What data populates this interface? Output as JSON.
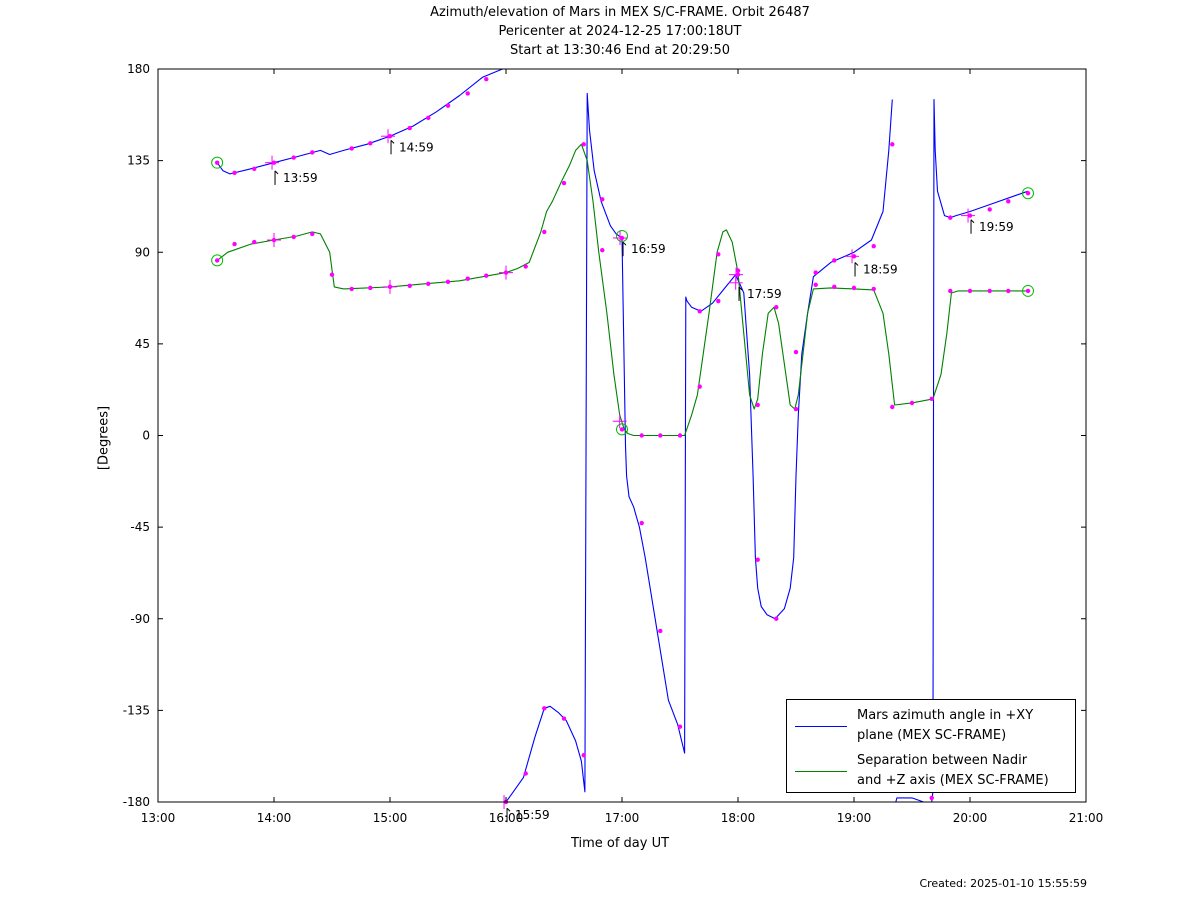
{
  "chart_data": {
    "type": "line",
    "title": "Azimuth/elevation of Mars in MEX S/C-FRAME.  Orbit 26487",
    "subtitle_1": "Pericenter at 2024-12-25 17:00:18UT",
    "subtitle_2": "Start at 13:30:46 End at 20:29:50",
    "xlabel": "Time of day UT",
    "ylabel": "[Degrees]",
    "xlim": [
      13.0,
      21.0
    ],
    "ylim": [
      -180,
      180
    ],
    "x_ticks": [
      {
        "value": 13,
        "label": "13:00"
      },
      {
        "value": 14,
        "label": "14:00"
      },
      {
        "value": 15,
        "label": "15:00"
      },
      {
        "value": 16,
        "label": "16:00"
      },
      {
        "value": 17,
        "label": "17:00"
      },
      {
        "value": 18,
        "label": "18:00"
      },
      {
        "value": 19,
        "label": "19:00"
      },
      {
        "value": 20,
        "label": "20:00"
      },
      {
        "value": 21,
        "label": "21:00"
      }
    ],
    "y_ticks": [
      {
        "value": 180,
        "label": "180"
      },
      {
        "value": 135,
        "label": "135"
      },
      {
        "value": 90,
        "label": "90"
      },
      {
        "value": 45,
        "label": "45"
      },
      {
        "value": 0,
        "label": "0"
      },
      {
        "value": -45,
        "label": "-45"
      },
      {
        "value": -90,
        "label": "-90"
      },
      {
        "value": -135,
        "label": "-135"
      },
      {
        "value": -180,
        "label": "-180"
      }
    ],
    "grid": false,
    "legend_position": "bottom-right",
    "series": [
      {
        "name": "Mars azimuth angle in +XY\nplane (MEX SC-FRAME)",
        "color": "#0000ff",
        "x": [
          13.51,
          13.56,
          13.62,
          13.8,
          14.0,
          14.2,
          14.4,
          14.48,
          14.6,
          14.8,
          15.0,
          15.2,
          15.4,
          15.6,
          15.8,
          15.97,
          15.98,
          15.99,
          16.0,
          16.05,
          16.15,
          16.25,
          16.33,
          16.38,
          16.45,
          16.52,
          16.6,
          16.65,
          16.68,
          16.7,
          16.72,
          16.76,
          16.82,
          16.9,
          16.95,
          17.0,
          17.03,
          17.04,
          17.06,
          17.1,
          17.15,
          17.2,
          17.3,
          17.4,
          17.48,
          17.54,
          17.55,
          17.56,
          17.6,
          17.68,
          17.78,
          17.88,
          17.98,
          18.05,
          18.1,
          18.13,
          18.15,
          18.17,
          18.2,
          18.25,
          18.32,
          18.4,
          18.45,
          18.48,
          18.5,
          18.52,
          18.55,
          18.6,
          18.65,
          18.8,
          19.0,
          19.15,
          19.25,
          19.3,
          19.33,
          19.35,
          19.36,
          19.37,
          19.5,
          19.6,
          19.67,
          19.68,
          19.69,
          19.7,
          19.72,
          19.78,
          19.83,
          19.88,
          20.0,
          20.2,
          20.4,
          20.5
        ],
        "y": [
          134,
          130,
          128.5,
          131,
          134,
          137,
          140,
          138,
          140,
          143,
          147,
          152,
          159,
          167,
          176,
          180,
          null,
          -180,
          -180,
          -176,
          -168,
          -148,
          -134,
          -133,
          -136,
          -140,
          -150,
          -160,
          -175,
          168,
          150,
          130,
          115,
          103,
          99,
          97,
          -5,
          -20,
          -30,
          -35,
          -45,
          -60,
          -95,
          -130,
          -142,
          -156,
          68,
          66,
          63,
          61,
          65,
          72,
          79,
          70,
          30,
          -20,
          -60,
          -75,
          -84,
          -88,
          -90,
          -85,
          -75,
          -60,
          -20,
          10,
          40,
          60,
          78,
          85,
          90,
          96,
          110,
          140,
          165,
          null,
          -180,
          -178,
          -178,
          -180,
          -180,
          -175,
          165,
          140,
          120,
          108,
          107,
          108,
          110,
          114,
          118,
          120
        ]
      },
      {
        "name": "Separation between Nadir\nand +Z axis (MEX SC-FRAME)",
        "color": "#008000",
        "x": [
          13.51,
          13.6,
          13.8,
          14.0,
          14.2,
          14.33,
          14.4,
          14.48,
          14.52,
          14.6,
          14.8,
          15.0,
          15.2,
          15.4,
          15.6,
          15.8,
          16.0,
          16.1,
          16.2,
          16.3,
          16.35,
          16.4,
          16.48,
          16.55,
          16.6,
          16.65,
          16.7,
          16.75,
          16.8,
          16.87,
          16.93,
          16.98,
          17.02,
          17.05,
          17.1,
          17.2,
          17.3,
          17.4,
          17.5,
          17.54,
          17.6,
          17.65,
          17.7,
          17.75,
          17.82,
          17.87,
          17.9,
          17.95,
          18.0,
          18.05,
          18.1,
          18.14,
          18.17,
          18.21,
          18.26,
          18.31,
          18.35,
          18.4,
          18.45,
          18.49,
          18.52,
          18.56,
          18.6,
          18.65,
          18.8,
          19.0,
          19.17,
          19.25,
          19.3,
          19.35,
          19.5,
          19.68,
          19.75,
          19.8,
          19.84,
          19.9,
          20.0,
          20.2,
          20.4,
          20.5
        ],
        "y": [
          86,
          90,
          94,
          96,
          98,
          100,
          99,
          90,
          73,
          72,
          72.5,
          73,
          74,
          75,
          76,
          78,
          80,
          82,
          85,
          100,
          110,
          115,
          125,
          133,
          140,
          143,
          135,
          115,
          90,
          60,
          30,
          10,
          3,
          1,
          0,
          0,
          0,
          0,
          0,
          0,
          10,
          20,
          40,
          60,
          90,
          100,
          101,
          95,
          80,
          50,
          20,
          13,
          18,
          40,
          60,
          63,
          55,
          35,
          15,
          13,
          20,
          40,
          60,
          72,
          72.5,
          72,
          71.5,
          60,
          40,
          15,
          16,
          18,
          30,
          50,
          70,
          71,
          71,
          71,
          71,
          71
        ]
      }
    ],
    "markers": [
      {
        "x": 13.51,
        "y": 134
      },
      {
        "x": 13.66,
        "y": 129
      },
      {
        "x": 13.83,
        "y": 131
      },
      {
        "x": 14.0,
        "y": 134
      },
      {
        "x": 14.17,
        "y": 136.5
      },
      {
        "x": 14.33,
        "y": 139
      },
      {
        "x": 14.67,
        "y": 141
      },
      {
        "x": 14.83,
        "y": 143.5
      },
      {
        "x": 15.0,
        "y": 147
      },
      {
        "x": 15.17,
        "y": 151
      },
      {
        "x": 15.33,
        "y": 156
      },
      {
        "x": 15.5,
        "y": 162
      },
      {
        "x": 15.67,
        "y": 168
      },
      {
        "x": 15.83,
        "y": 175
      },
      {
        "x": 16.0,
        "y": -180
      },
      {
        "x": 16.17,
        "y": -166
      },
      {
        "x": 16.33,
        "y": -134
      },
      {
        "x": 16.5,
        "y": -139
      },
      {
        "x": 16.67,
        "y": -157
      },
      {
        "x": 16.83,
        "y": 116
      },
      {
        "x": 17.0,
        "y": 97
      },
      {
        "x": 17.17,
        "y": -43
      },
      {
        "x": 17.33,
        "y": -96
      },
      {
        "x": 17.5,
        "y": -143
      },
      {
        "x": 17.67,
        "y": 61
      },
      {
        "x": 17.83,
        "y": 66
      },
      {
        "x": 18.0,
        "y": 79
      },
      {
        "x": 18.17,
        "y": -61
      },
      {
        "x": 18.33,
        "y": -90
      },
      {
        "x": 18.5,
        "y": 41
      },
      {
        "x": 18.67,
        "y": 80
      },
      {
        "x": 18.83,
        "y": 86
      },
      {
        "x": 19.0,
        "y": 88
      },
      {
        "x": 19.17,
        "y": 93
      },
      {
        "x": 19.33,
        "y": 143
      },
      {
        "x": 19.67,
        "y": -178
      },
      {
        "x": 19.83,
        "y": 107
      },
      {
        "x": 20.0,
        "y": 108
      },
      {
        "x": 20.17,
        "y": 111
      },
      {
        "x": 20.33,
        "y": 115
      },
      {
        "x": 20.5,
        "y": 119
      },
      {
        "x": 13.51,
        "y": 86
      },
      {
        "x": 13.66,
        "y": 94
      },
      {
        "x": 13.83,
        "y": 95
      },
      {
        "x": 14.0,
        "y": 96
      },
      {
        "x": 14.17,
        "y": 97.5
      },
      {
        "x": 14.33,
        "y": 99
      },
      {
        "x": 14.5,
        "y": 79
      },
      {
        "x": 14.67,
        "y": 72
      },
      {
        "x": 14.83,
        "y": 72.5
      },
      {
        "x": 15.0,
        "y": 73
      },
      {
        "x": 15.17,
        "y": 73.5
      },
      {
        "x": 15.33,
        "y": 74.5
      },
      {
        "x": 15.5,
        "y": 75.5
      },
      {
        "x": 15.67,
        "y": 77
      },
      {
        "x": 15.83,
        "y": 78.5
      },
      {
        "x": 16.0,
        "y": 80
      },
      {
        "x": 16.17,
        "y": 83
      },
      {
        "x": 16.33,
        "y": 100
      },
      {
        "x": 16.5,
        "y": 124
      },
      {
        "x": 16.67,
        "y": 143
      },
      {
        "x": 16.83,
        "y": 91
      },
      {
        "x": 17.0,
        "y": 3
      },
      {
        "x": 17.17,
        "y": 0
      },
      {
        "x": 17.33,
        "y": 0
      },
      {
        "x": 17.5,
        "y": 0
      },
      {
        "x": 17.67,
        "y": 24
      },
      {
        "x": 17.83,
        "y": 89
      },
      {
        "x": 18.0,
        "y": 81
      },
      {
        "x": 18.17,
        "y": 15
      },
      {
        "x": 18.33,
        "y": 63
      },
      {
        "x": 18.5,
        "y": 13
      },
      {
        "x": 18.67,
        "y": 74
      },
      {
        "x": 18.83,
        "y": 73
      },
      {
        "x": 19.0,
        "y": 72.5
      },
      {
        "x": 19.17,
        "y": 72
      },
      {
        "x": 19.33,
        "y": 14
      },
      {
        "x": 19.5,
        "y": 16
      },
      {
        "x": 19.67,
        "y": 18
      },
      {
        "x": 19.83,
        "y": 71
      },
      {
        "x": 20.0,
        "y": 71
      },
      {
        "x": 20.17,
        "y": 71
      },
      {
        "x": 20.33,
        "y": 71
      },
      {
        "x": 20.5,
        "y": 71
      }
    ],
    "hour_marks": [
      {
        "x": 13.983,
        "y_label": 127,
        "y_cross": 134,
        "label": "13:59"
      },
      {
        "x": 14.983,
        "y_label": 142,
        "y_cross": 147,
        "label": "14:59"
      },
      {
        "x": 15.983,
        "y_label": -186,
        "y_cross": -180,
        "label": "15:59"
      },
      {
        "x": 16.983,
        "y_label": 92,
        "y_cross": 97,
        "label": "16:59"
      },
      {
        "x": 17.983,
        "y_label": 70,
        "y_cross": 79,
        "label": "17:59"
      },
      {
        "x": 18.983,
        "y_label": 82,
        "y_cross": 88,
        "label": "18:59"
      },
      {
        "x": 19.983,
        "y_label": 103,
        "y_cross": 108,
        "label": "19:59"
      }
    ],
    "extra_crosses": [
      {
        "x": 14.0,
        "y": 96
      },
      {
        "x": 15.0,
        "y": 73
      },
      {
        "x": 16.0,
        "y": 80
      },
      {
        "x": 16.98,
        "y": 7
      },
      {
        "x": 17.98,
        "y": 75
      }
    ],
    "circles": [
      {
        "x": 13.51,
        "y": 134
      },
      {
        "x": 13.51,
        "y": 86
      },
      {
        "x": 17.0,
        "y": 98
      },
      {
        "x": 17.0,
        "y": 3
      },
      {
        "x": 20.5,
        "y": 119
      },
      {
        "x": 20.5,
        "y": 71
      }
    ]
  },
  "created_text": "Created: 2025-01-10 15:55:59",
  "colors": {
    "marker": "#ff00ff",
    "circle": "#00c000",
    "axis": "#000000"
  }
}
